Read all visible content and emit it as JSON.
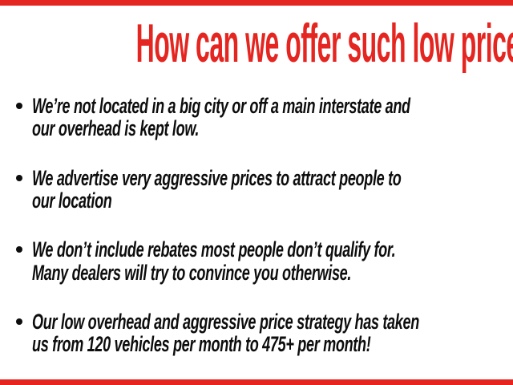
{
  "slide": {
    "title": "How can we offer such low prices?",
    "accent_color": "#e52520",
    "text_color": "#0d0d0d",
    "bullet_marker": "•",
    "bullets": [
      "We’re not located in a big city or off a main interstate and\nour overhead is kept low.",
      "We advertise very aggressive prices to attract people to\nour location",
      "We don’t include rebates most people don’t qualify for.\nMany dealers will try to convince you otherwise.",
      "Our low overhead and aggressive price strategy has taken\nus from 120 vehicles per month to 475+ per month!"
    ]
  }
}
